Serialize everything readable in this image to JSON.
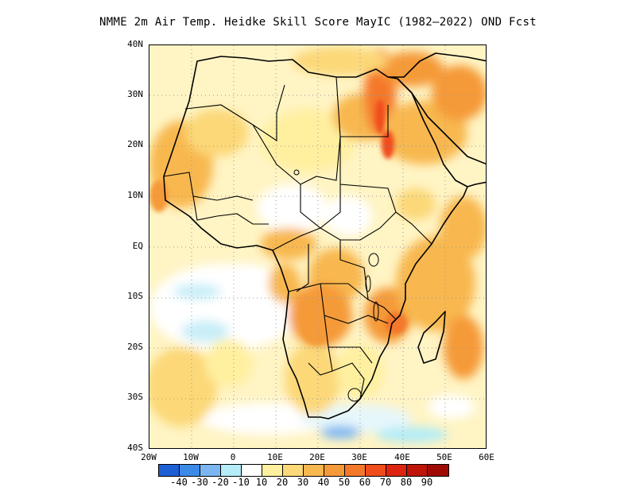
{
  "title": "NMME 2m Air Temp. Heidke Skill Score MayIC (1982–2022) OND Fcst",
  "lat_labels": [
    "40N",
    "30N",
    "20N",
    "10N",
    "EQ",
    "10S",
    "20S",
    "30S",
    "40S"
  ],
  "lon_labels": [
    "20W",
    "10W",
    "0",
    "10E",
    "20E",
    "30E",
    "40E",
    "50E",
    "60E"
  ],
  "colorbar": {
    "colors": [
      "#1f5fd6",
      "#3c8ae8",
      "#7cb6f2",
      "#b4ecf7",
      "#ffffff",
      "#fff0a0",
      "#fcd878",
      "#f8b850",
      "#f59a38",
      "#f4782a",
      "#f04c1c",
      "#dc2410",
      "#c01408",
      "#a00a04"
    ],
    "labels": [
      "-40",
      "-30",
      "-20",
      "-10",
      "10",
      "20",
      "30",
      "40",
      "50",
      "60",
      "70",
      "80",
      "90"
    ]
  },
  "colors": {
    "land_outline": "#000000",
    "grid": "#999999"
  }
}
